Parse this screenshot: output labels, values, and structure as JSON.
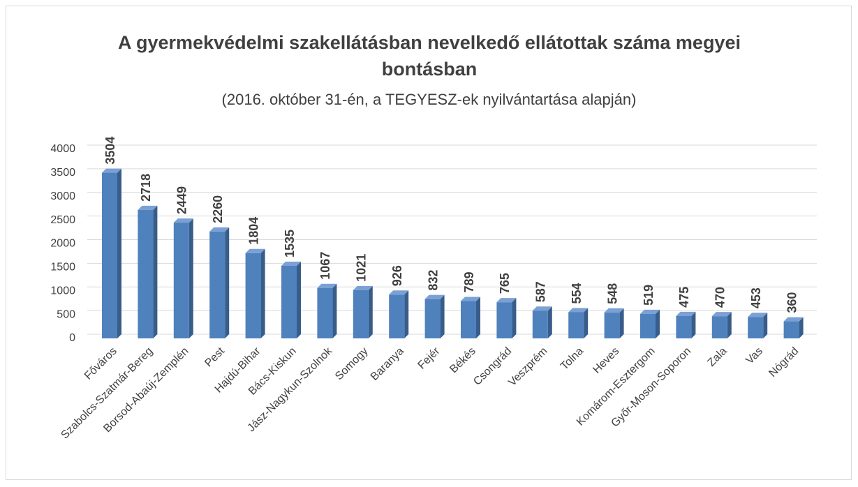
{
  "chart_data": {
    "type": "bar",
    "title": "A gyermekvédelmi szakellátásban nevelkedő ellátottak száma megyei bontásban",
    "subtitle": "(2016. október 31-én, a TEGYESZ-ek nyilvántartása alapján)",
    "categories": [
      "Főváros",
      "Szabolcs-Szatmár-Bereg",
      "Borsod-Abaúj-Zemplén",
      "Pest",
      "Hajdú-Bihar",
      "Bács-Kiskun",
      "Jász-Nagykun-Szolnok",
      "Somogy",
      "Baranya",
      "Fejér",
      "Békés",
      "Csongrád",
      "Veszprém",
      "Tolna",
      "Heves",
      "Komárom-Esztergom",
      "Győr-Moson-Soporon",
      "Zala",
      "Vas",
      "Nógrád"
    ],
    "values": [
      3504,
      2718,
      2449,
      2260,
      1804,
      1535,
      1067,
      1021,
      926,
      832,
      789,
      765,
      587,
      554,
      548,
      519,
      475,
      470,
      453,
      360
    ],
    "color": "#4f81bd",
    "ylim": [
      0,
      4000
    ],
    "yticks": [
      0,
      500,
      1000,
      1500,
      2000,
      2500,
      3000,
      3500,
      4000
    ],
    "grid": true
  }
}
